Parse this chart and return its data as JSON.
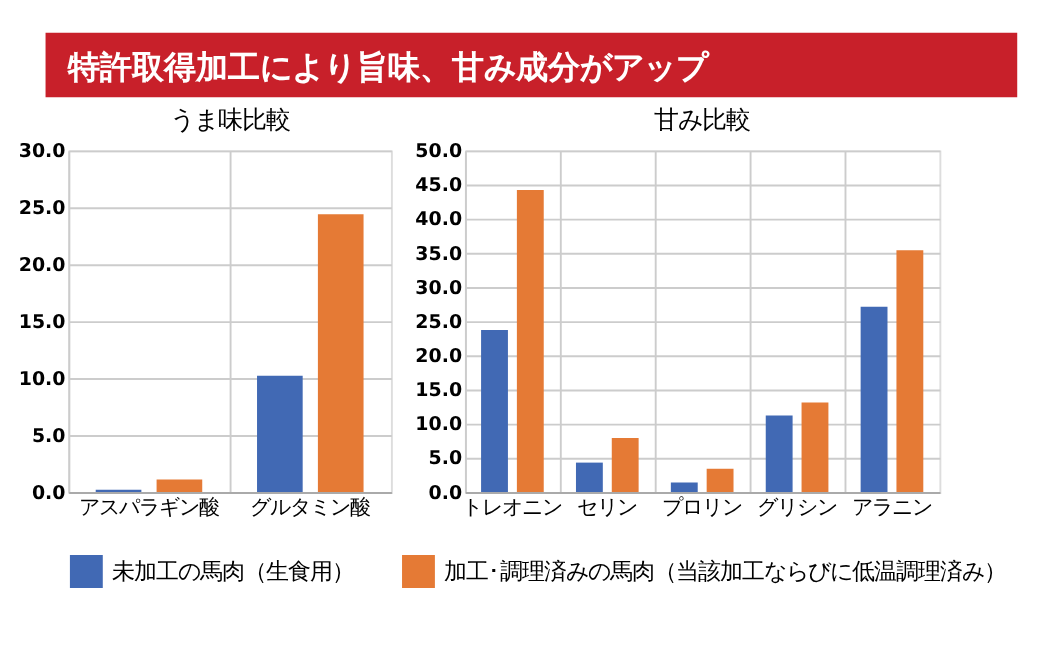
{
  "chart_data": [
    {
      "type": "bar",
      "title": "うま味比較",
      "annotations": [
        "特許取得加工により旨味、甘み成分がアップ"
      ],
      "categories": [
        "アスパラギン酸",
        "グルタミン酸"
      ],
      "series": [
        {
          "name": "未加工の馬肉（生食用）",
          "color": "#4169b4",
          "values": [
            0.2,
            10.2
          ]
        },
        {
          "name": "加工･調理済みの馬肉（当該加工ならびに低温調理済み）",
          "color": "#e57a35",
          "values": [
            1.1,
            24.4
          ]
        }
      ],
      "ylim": [
        0,
        30
      ],
      "yticks": [
        {
          "value": 0,
          "label": "0.0"
        },
        {
          "value": 5,
          "label": "5.0"
        },
        {
          "value": 10,
          "label": "10.0"
        },
        {
          "value": 15,
          "label": "15.0"
        },
        {
          "value": 20,
          "label": "20.0"
        },
        {
          "value": 25,
          "label": "25.0"
        },
        {
          "value": 30,
          "label": "30.0"
        }
      ],
      "grid": true,
      "legend": "bottom"
    },
    {
      "type": "bar",
      "title": "甘み比較",
      "categories": [
        "トレオニン",
        "セリン",
        "プロリン",
        "グリシン",
        "アラニン"
      ],
      "series": [
        {
          "name": "未加工の馬肉（生食用）",
          "color": "#4169b4",
          "values": [
            23.7,
            4.3,
            1.4,
            11.2,
            27.1
          ]
        },
        {
          "name": "加工･調理済みの馬肉（当該加工ならびに低温調理済み）",
          "color": "#e57a35",
          "values": [
            44.2,
            7.9,
            3.4,
            13.1,
            35.4
          ]
        }
      ],
      "ylim": [
        0,
        50
      ],
      "yticks": [
        {
          "value": 0,
          "label": "0.0"
        },
        {
          "value": 5,
          "label": "5.0"
        },
        {
          "value": 10,
          "label": "10.0"
        },
        {
          "value": 15,
          "label": "15.0"
        },
        {
          "value": 20,
          "label": "20.0"
        },
        {
          "value": 25,
          "label": "25.0"
        },
        {
          "value": 30,
          "label": "30.0"
        },
        {
          "value": 35,
          "label": "35.0"
        },
        {
          "value": 40,
          "label": "40.0"
        },
        {
          "value": 45,
          "label": "45.0"
        },
        {
          "value": 50,
          "label": "50.0"
        }
      ],
      "grid": true,
      "legend": "bottom"
    }
  ]
}
